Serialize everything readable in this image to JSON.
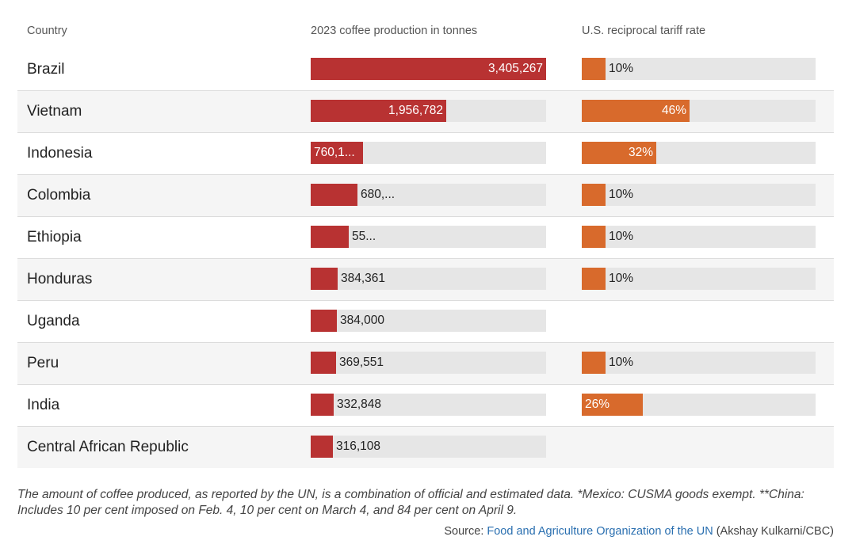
{
  "header": {
    "country": "Country",
    "production": "2023 coffee production in tonnes",
    "tariff": "U.S. reciprocal tariff rate"
  },
  "colors": {
    "production": "#b83232",
    "tariff": "#d86a2c",
    "track": "#e6e6e6"
  },
  "chart_data": {
    "type": "table",
    "production_max": 3405267,
    "tariff_max": 100,
    "rows": [
      {
        "country": "Brazil",
        "production": 3405267,
        "production_label": "3,405,267",
        "tariff": 10,
        "tariff_label": "10%"
      },
      {
        "country": "Vietnam",
        "production": 1956782,
        "production_label": "1,956,782",
        "tariff": 46,
        "tariff_label": "46%"
      },
      {
        "country": "Indonesia",
        "production": 760100,
        "production_label": "760,1...",
        "tariff": 32,
        "tariff_label": "32%"
      },
      {
        "country": "Colombia",
        "production": 680000,
        "production_label": "680,...",
        "tariff": 10,
        "tariff_label": "10%"
      },
      {
        "country": "Ethiopia",
        "production": 550000,
        "production_label": "55...",
        "tariff": 10,
        "tariff_label": "10%"
      },
      {
        "country": "Honduras",
        "production": 384361,
        "production_label": "384,361",
        "tariff": 10,
        "tariff_label": "10%"
      },
      {
        "country": "Uganda",
        "production": 384000,
        "production_label": "384,000",
        "tariff": null,
        "tariff_label": ""
      },
      {
        "country": "Peru",
        "production": 369551,
        "production_label": "369,551",
        "tariff": 10,
        "tariff_label": "10%"
      },
      {
        "country": "India",
        "production": 332848,
        "production_label": "332,848",
        "tariff": 26,
        "tariff_label": "26%"
      },
      {
        "country": "Central African Republic",
        "production": 316108,
        "production_label": "316,108",
        "tariff": null,
        "tariff_label": ""
      }
    ]
  },
  "footnote": "The amount of coffee produced, as reported by the UN, is a combination of official and estimated data. *Mexico: CUSMA goods exempt. **China: Includes 10 per cent imposed on Feb. 4, 10 per cent on March 4, and 84 per cent on April 9.",
  "source": {
    "prefix": "Source: ",
    "link": "Food and Agriculture Organization of the UN",
    "credit": " (Akshay Kulkarni/CBC)"
  }
}
